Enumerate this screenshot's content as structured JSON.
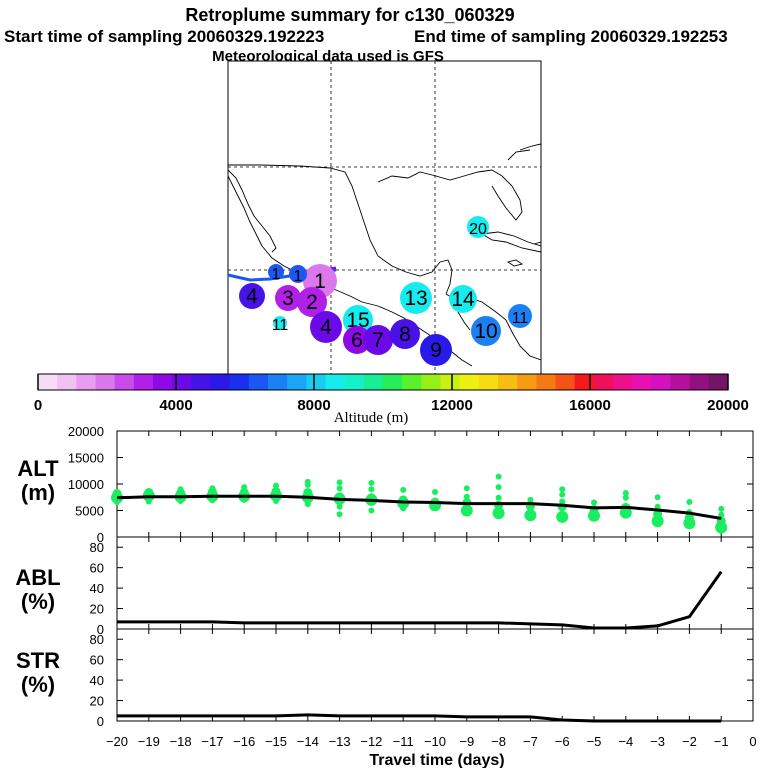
{
  "header": {
    "title": "Retroplume summary for c130_060329",
    "start_label": "Start time of sampling 20060329.192223",
    "end_label": "End time of sampling 20060329.192253",
    "met_label": "Meteorological data used is GFS"
  },
  "colorbar": {
    "tick_labels": [
      "0",
      "4000",
      "8000",
      "12000",
      "16000",
      "20000"
    ],
    "label": "Altitude (m)",
    "colors": [
      "#f6dcf6",
      "#efc2f2",
      "#e79ef0",
      "#db79ec",
      "#c94bea",
      "#b020e6",
      "#8f08e6",
      "#6a0ae6",
      "#4712e6",
      "#2a1aea",
      "#1a30ee",
      "#1b58f2",
      "#1b80f4",
      "#1aa6f4",
      "#18cdf2",
      "#16ecee",
      "#16f0c8",
      "#18ee96",
      "#28ec5a",
      "#5af02a",
      "#96f018",
      "#c8f012",
      "#eef012",
      "#f6dc10",
      "#f6be10",
      "#f69c12",
      "#f67a14",
      "#f45218",
      "#f21a1a",
      "#f0105a",
      "#ec108c",
      "#e810b4",
      "#d410c0",
      "#b4109e",
      "#921080",
      "#741466"
    ]
  },
  "map": {
    "labels": [
      {
        "text": "20",
        "color": "#16ecee"
      },
      {
        "text": "1",
        "color": "#db79ec"
      },
      {
        "text": "1",
        "color": "#1b58f2"
      },
      {
        "text": "1",
        "color": "#1b58f2"
      },
      {
        "text": "4",
        "color": "#4712e6"
      },
      {
        "text": "3",
        "color": "#b020e6"
      },
      {
        "text": "2",
        "color": "#b020e6"
      },
      {
        "text": "4",
        "color": "#6a0ae6"
      },
      {
        "text": "15",
        "color": "#16ecee"
      },
      {
        "text": "11",
        "color": "#16ecee"
      },
      {
        "text": "13",
        "color": "#16ecee"
      },
      {
        "text": "14",
        "color": "#16ecee"
      },
      {
        "text": "6",
        "color": "#8f08e6"
      },
      {
        "text": "7",
        "color": "#6a0ae6"
      },
      {
        "text": "8",
        "color": "#4712e6"
      },
      {
        "text": "9",
        "color": "#2a1aea"
      },
      {
        "text": "10",
        "color": "#1b80f4"
      },
      {
        "text": "11",
        "color": "#1b80f4"
      }
    ]
  },
  "chart_data": [
    {
      "type": "scatter",
      "panel": "ALT",
      "ylabel": "ALT (m)",
      "ylim": [
        0,
        20000
      ],
      "yticks": [
        "0",
        "5000",
        "10000",
        "15000",
        "20000"
      ],
      "median_line": {
        "x": [
          -20,
          -19,
          -18,
          -17,
          -16,
          -15,
          -14,
          -13,
          -12,
          -11,
          -10,
          -9,
          -8,
          -7,
          -6,
          -5,
          -4,
          -3,
          -2,
          -1
        ],
        "y": [
          7400,
          7600,
          7600,
          7700,
          7700,
          7700,
          7500,
          7100,
          6900,
          6600,
          6500,
          6300,
          6300,
          6300,
          6000,
          5500,
          5600,
          5100,
          4500,
          3500
        ]
      },
      "points": [
        {
          "x": -20,
          "y": [
            7400,
            8200,
            6600
          ]
        },
        {
          "x": -19,
          "y": [
            7800,
            8400,
            6700
          ]
        },
        {
          "x": -18,
          "y": [
            7600,
            8300,
            6800,
            9000
          ]
        },
        {
          "x": -17,
          "y": [
            7700,
            8500,
            6900,
            9200
          ]
        },
        {
          "x": -16,
          "y": [
            7700,
            8400,
            7000,
            9400
          ]
        },
        {
          "x": -15,
          "y": [
            7800,
            8600,
            6800,
            9700
          ]
        },
        {
          "x": -14,
          "y": [
            7500,
            8400,
            6200,
            9800,
            10400
          ]
        },
        {
          "x": -13,
          "y": [
            7200,
            7600,
            5700,
            4300,
            9200,
            10300
          ]
        },
        {
          "x": -12,
          "y": [
            7000,
            7400,
            5000,
            9000,
            10200
          ]
        },
        {
          "x": -11,
          "y": [
            6400,
            7000,
            5400,
            8900
          ]
        },
        {
          "x": -10,
          "y": [
            6000,
            6600,
            5600,
            8500
          ]
        },
        {
          "x": -9,
          "y": [
            5000,
            6500,
            4700,
            7600,
            9200
          ]
        },
        {
          "x": -8,
          "y": [
            4500,
            6000,
            7400,
            9400,
            11400
          ]
        },
        {
          "x": -7,
          "y": [
            4100,
            5800,
            7000
          ]
        },
        {
          "x": -6,
          "y": [
            3800,
            5700,
            6700,
            8000,
            9000
          ]
        },
        {
          "x": -5,
          "y": [
            4000,
            5200,
            6500
          ]
        },
        {
          "x": -4,
          "y": [
            4600,
            5600,
            7400,
            8300
          ]
        },
        {
          "x": -3,
          "y": [
            3000,
            4300,
            5700,
            7500
          ]
        },
        {
          "x": -2,
          "y": [
            2600,
            3700,
            4700,
            6600
          ]
        },
        {
          "x": -1,
          "y": [
            1800,
            3000,
            4200,
            5300
          ]
        }
      ]
    },
    {
      "type": "line",
      "panel": "ABL",
      "ylabel": "ABL (%)",
      "ylim": [
        0,
        90
      ],
      "yticks": [
        "0",
        "20",
        "40",
        "60",
        "80"
      ],
      "x": [
        -20,
        -19,
        -18,
        -17,
        -16,
        -15,
        -14,
        -13,
        -12,
        -11,
        -10,
        -9,
        -8,
        -7,
        -6,
        -5,
        -4,
        -3,
        -2,
        -1
      ],
      "y": [
        7,
        7,
        7,
        7,
        6,
        6,
        6,
        6,
        6,
        6,
        6,
        6,
        6,
        5,
        4,
        1,
        1,
        3,
        12,
        56
      ]
    },
    {
      "type": "line",
      "panel": "STR",
      "ylabel": "STR (%)",
      "ylim": [
        0,
        90
      ],
      "yticks": [
        "0",
        "20",
        "40",
        "60",
        "80"
      ],
      "x": [
        -20,
        -19,
        -18,
        -17,
        -16,
        -15,
        -14,
        -13,
        -12,
        -11,
        -10,
        -9,
        -8,
        -7,
        -6,
        -5,
        -4,
        -3,
        -2,
        -1
      ],
      "y": [
        5,
        5,
        5,
        5,
        5,
        5,
        6,
        5,
        5,
        5,
        5,
        4,
        4,
        4,
        1,
        0,
        0,
        0,
        0,
        0
      ]
    }
  ],
  "x_axis": {
    "label": "Travel time (days)",
    "tick_labels": [
      "−20",
      "−19",
      "−18",
      "−17",
      "−16",
      "−15",
      "−14",
      "−13",
      "−12",
      "−11",
      "−10",
      "−9",
      "−8",
      "−7",
      "−6",
      "−5",
      "−4",
      "−3",
      "−2",
      "−1",
      "0"
    ]
  },
  "panel_labels": {
    "alt": {
      "line1": "ALT",
      "line2": "(m)"
    },
    "abl": {
      "line1": "ABL",
      "line2": "(%)"
    },
    "str": {
      "line1": "STR",
      "line2": "(%)"
    }
  }
}
